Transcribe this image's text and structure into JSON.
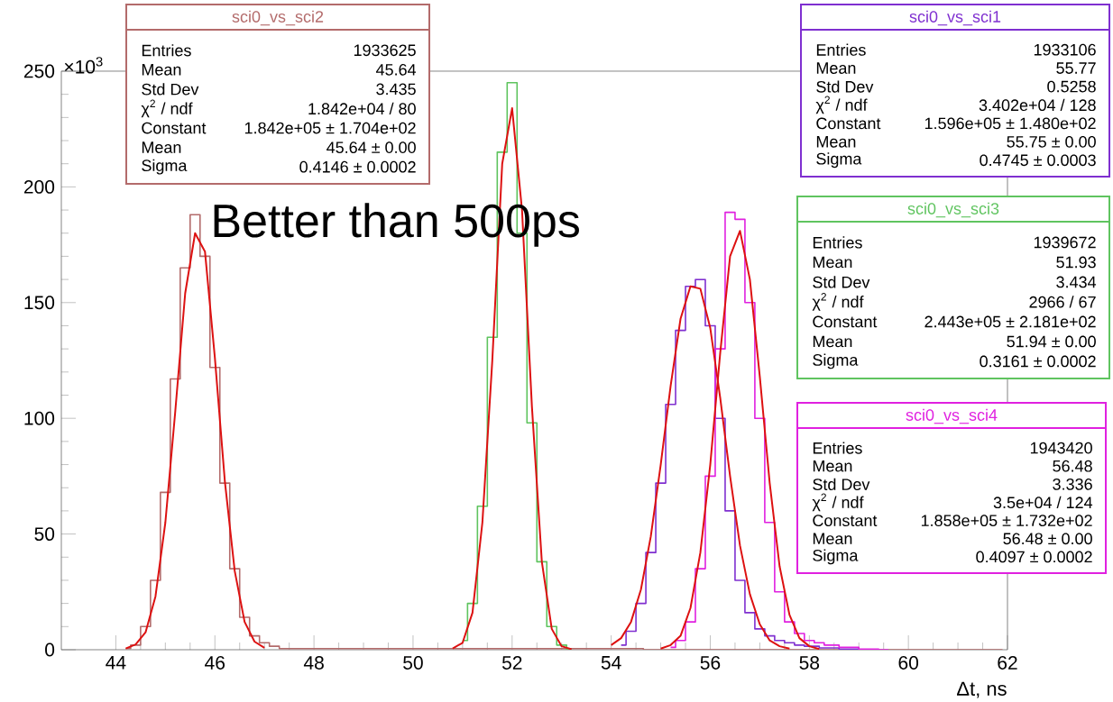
{
  "chart_data": {
    "type": "step",
    "xlabel": "Δt, ns",
    "ylabel": "×10$^{3}$",
    "xlim": [
      42.9,
      62
    ],
    "xticks": [
      44,
      46,
      48,
      50,
      52,
      54,
      56,
      58,
      60,
      62
    ],
    "ylim": [
      0,
      250
    ],
    "yticks": [
      0,
      50,
      100,
      150,
      200,
      250
    ],
    "series": [
      {
        "name": "sci0_vs_sci2",
        "color": "#b36b6b",
        "x": [
          44.2,
          44.4,
          44.6,
          44.8,
          45.0,
          45.2,
          45.4,
          45.6,
          45.8,
          46.0,
          46.2,
          46.4,
          46.6,
          46.8,
          47.0,
          47.2,
          47.4,
          61.9
        ],
        "values": [
          0.5,
          2,
          10,
          30,
          68,
          117,
          165,
          188,
          170,
          122,
          72,
          35,
          14,
          6,
          3,
          1.5,
          0.5,
          0
        ]
      },
      {
        "name": "sci0_vs_sci1",
        "color": "#7f2fd0",
        "x": [
          54.2,
          54.4,
          54.6,
          54.8,
          55.0,
          55.2,
          55.4,
          55.6,
          55.8,
          56.0,
          56.2,
          56.4,
          56.6,
          56.8,
          57.0,
          57.2,
          57.4,
          57.6,
          57.8,
          58.0,
          58.4,
          58.8,
          59.2
        ],
        "values": [
          2,
          8,
          20,
          42,
          72,
          106,
          138,
          157,
          160,
          140,
          100,
          60,
          30,
          16,
          9,
          6,
          4,
          3,
          2,
          1.5,
          0.8,
          0.3,
          0
        ]
      },
      {
        "name": "sci0_vs_sci3",
        "color": "#5fc45f",
        "x": [
          51.0,
          51.2,
          51.4,
          51.6,
          51.8,
          52.0,
          52.2,
          52.4,
          52.6,
          52.8,
          53.0,
          53.2
        ],
        "values": [
          4,
          20,
          62,
          135,
          215,
          245,
          180,
          98,
          38,
          10,
          2,
          0
        ]
      },
      {
        "name": "sci0_vs_sci4",
        "color": "#e020e0",
        "x": [
          55.2,
          55.4,
          55.6,
          55.8,
          56.0,
          56.2,
          56.4,
          56.6,
          56.8,
          57.0,
          57.2,
          57.4,
          57.6,
          57.8,
          58.0,
          58.2,
          58.4,
          58.8,
          59.2,
          59.6
        ],
        "values": [
          1,
          4,
          12,
          35,
          75,
          130,
          189,
          186,
          150,
          100,
          55,
          25,
          12,
          7,
          4,
          3,
          2,
          1,
          0.3,
          0
        ]
      },
      {
        "type": "line",
        "color": "#dd1111",
        "x": [
          44.2,
          44.4,
          44.6,
          44.8,
          45.0,
          45.2,
          45.4,
          45.6,
          45.8,
          46.0,
          46.2,
          46.4,
          46.6,
          46.8,
          47.0
        ],
        "values": [
          0.5,
          2.3,
          7.5,
          23,
          55,
          103,
          154,
          180,
          172,
          126,
          73,
          34,
          12,
          3.5,
          0.8
        ]
      },
      {
        "type": "line",
        "color": "#dd1111",
        "x": [
          54.0,
          54.2,
          54.4,
          54.6,
          54.8,
          55.0,
          55.2,
          55.4,
          55.6,
          55.8,
          56.0,
          56.2,
          56.4,
          56.6,
          56.8,
          57.0,
          57.2,
          57.4,
          57.6
        ],
        "values": [
          2,
          5,
          12,
          26,
          49,
          80,
          114,
          143,
          157,
          156,
          139,
          109,
          75,
          45,
          24,
          11,
          4,
          1.5,
          0.5
        ]
      },
      {
        "type": "line",
        "color": "#dd1111",
        "x": [
          50.8,
          51.0,
          51.2,
          51.4,
          51.6,
          51.8,
          52.0,
          52.2,
          52.4,
          52.6,
          52.8,
          53.0,
          53.2
        ],
        "values": [
          0.5,
          3,
          16,
          55,
          125,
          210,
          234,
          190,
          105,
          38,
          9,
          1.5,
          0.2
        ]
      },
      {
        "type": "line",
        "color": "#dd1111",
        "x": [
          55.0,
          55.2,
          55.4,
          55.6,
          55.8,
          56.0,
          56.2,
          56.4,
          56.6,
          56.8,
          57.0,
          57.2,
          57.4,
          57.6,
          57.8,
          58.0,
          58.2
        ],
        "values": [
          0.5,
          2,
          6,
          18,
          42,
          80,
          128,
          170,
          181,
          160,
          118,
          72,
          36,
          15,
          5,
          1.5,
          0.3
        ]
      }
    ],
    "annotations": [
      "Better than 500ps",
      "Entries",
      "1933625",
      "Mean",
      "45.64",
      "Std Dev",
      "3.435",
      "χ$^{2}$ / ndf",
      "1.842e+04 / 80",
      "Constant",
      "1.842e+05 ± 1.704e+02",
      "Mean",
      "45.64 ± 0.00",
      "Sigma",
      "0.4146 ± 0.0002",
      "Entries",
      "1933106",
      "Mean",
      "55.77",
      "Std Dev",
      "0.5258",
      "χ$^{2}$ / ndf",
      "3.402e+04 / 128",
      "Constant",
      "1.596e+05 ± 1.480e+02",
      "Mean",
      "55.75 ± 0.00",
      "Sigma",
      "0.4745 ± 0.0003",
      "Entries",
      "1939672",
      "Mean",
      "51.93",
      "Std Dev",
      "3.434",
      "χ$^{2}$ / ndf",
      "2966 / 67",
      "Constant",
      "2.443e+05 ± 2.181e+02",
      "Mean",
      "51.94 ± 0.00",
      "Sigma",
      "0.3161 ± 0.0002",
      "Entries",
      "1943420",
      "Mean",
      "56.48",
      "Std Dev",
      "3.336",
      "χ$^{2}$ / ndf",
      "3.5e+04 / 124",
      "Constant",
      "1.858e+05 ± 1.732e+02",
      "Mean",
      "56.48 ± 0.00",
      "Sigma",
      "0.4097 ± 0.0002"
    ]
  }
}
